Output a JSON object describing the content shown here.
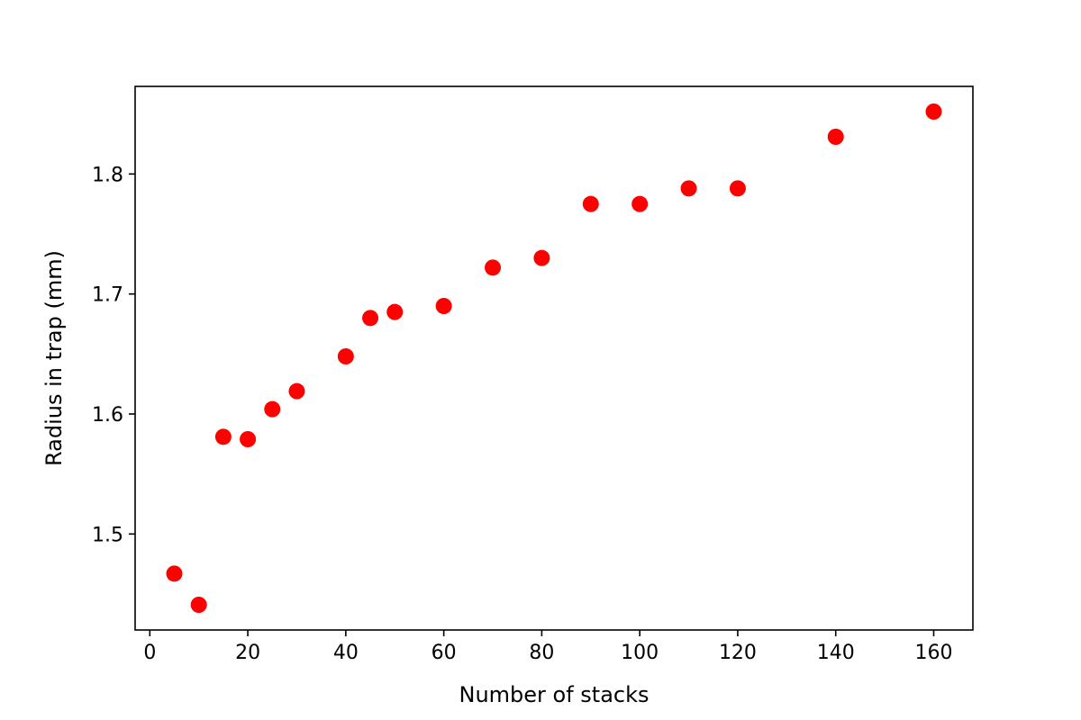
{
  "chart_data": {
    "type": "scatter",
    "title": "",
    "xlabel": "Number of stacks",
    "ylabel": "Radius in trap (mm)",
    "xlim": [
      -3,
      168
    ],
    "ylim": [
      1.42,
      1.873
    ],
    "xticks": [
      0,
      20,
      40,
      60,
      80,
      100,
      120,
      140,
      160
    ],
    "xtick_labels": [
      "0",
      "20",
      "40",
      "60",
      "80",
      "100",
      "120",
      "140",
      "160"
    ],
    "yticks": [
      1.5,
      1.6,
      1.7,
      1.8
    ],
    "ytick_labels": [
      "1.5",
      "1.6",
      "1.7",
      "1.8"
    ],
    "grid": false,
    "marker_color": "#ff0000",
    "series": [
      {
        "x": [
          5,
          10,
          15,
          20,
          25,
          30,
          40,
          45,
          50,
          60,
          70,
          80,
          90,
          100,
          110,
          120,
          140,
          160
        ],
        "y": [
          1.467,
          1.441,
          1.581,
          1.579,
          1.604,
          1.619,
          1.648,
          1.68,
          1.685,
          1.69,
          1.722,
          1.73,
          1.775,
          1.775,
          1.788,
          1.788,
          1.831,
          1.852
        ]
      }
    ]
  }
}
